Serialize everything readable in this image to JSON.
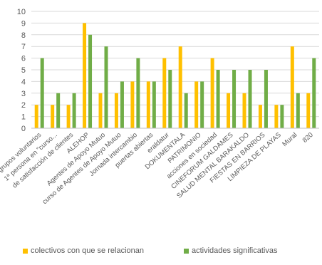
{
  "chart_data": {
    "type": "bar",
    "title": "",
    "xlabel": "",
    "ylabel": "",
    "ylim": [
      0,
      10
    ],
    "yticks": [
      "0",
      "1",
      "2",
      "3",
      "4",
      "5",
      "6",
      "7",
      "8",
      "9",
      "10"
    ],
    "grid": true,
    "legend_position": "bottom",
    "categories": [
      "grupos voluntarios",
      "1ª persona en \"curso...",
      "de satisfacción de clientes",
      "ALEHOP",
      "Agentes de Apoyo Mutuo",
      "curso de Agentes de Apoyo Mutuo",
      "Jornada intercambio",
      "puertas abiertas",
      "eraldatur",
      "DOKUMENTALA",
      "PATRIMONIO",
      "acciones en sociedad",
      "CINEFORUM GALDAMES",
      "SALUD MENTAL BARAKALDO",
      "FIESTAS EN BARRIOS",
      "LIMPIEZA DE PLAYAS",
      "Mural",
      "820"
    ],
    "series": [
      {
        "name": "colectivos con que se relacionan",
        "color": "#FFC000",
        "values": [
          2,
          2,
          2,
          9,
          3,
          3,
          4,
          4,
          6,
          7,
          4,
          6,
          3,
          3,
          2,
          2,
          7,
          3
        ]
      },
      {
        "name": "actividades significativas",
        "color": "#70AD47",
        "values": [
          6,
          3,
          3,
          8,
          7,
          4,
          6,
          4,
          5,
          3,
          4,
          5,
          5,
          5,
          5,
          2,
          3,
          6
        ]
      }
    ]
  }
}
